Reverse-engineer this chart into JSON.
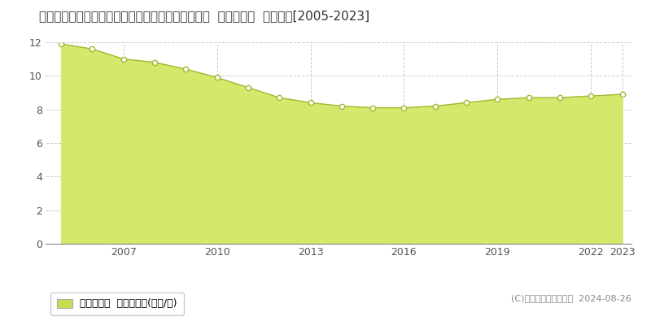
{
  "title": "鳥取県東伯郡湯梨浜町大字田後字宮ケ坪７７番２２  基準地価格  地価推移[2005-2023]",
  "years": [
    2005,
    2006,
    2007,
    2008,
    2009,
    2010,
    2011,
    2012,
    2013,
    2014,
    2015,
    2016,
    2017,
    2018,
    2019,
    2020,
    2021,
    2022,
    2023
  ],
  "values": [
    11.9,
    11.6,
    11.0,
    10.8,
    10.4,
    9.9,
    9.3,
    8.7,
    8.4,
    8.2,
    8.1,
    8.1,
    8.2,
    8.4,
    8.6,
    8.7,
    8.7,
    8.8,
    8.9
  ],
  "ylim": [
    0,
    12
  ],
  "yticks": [
    0,
    2,
    4,
    6,
    8,
    10,
    12
  ],
  "xticks": [
    2007,
    2010,
    2013,
    2016,
    2019,
    2022,
    2023
  ],
  "fill_color": "#d4e96b",
  "line_color": "#a0b830",
  "marker_color": "white",
  "marker_edge_color": "#a0b830",
  "grid_color": "#cccccc",
  "background_color": "#ffffff",
  "legend_label": "基準地価格  平均坪単価(万円/坪)",
  "legend_color": "#c8dc50",
  "copyright_text": "(C)土地価格ドットコム  2024-08-26",
  "title_fontsize": 11,
  "axis_fontsize": 9,
  "legend_fontsize": 9
}
